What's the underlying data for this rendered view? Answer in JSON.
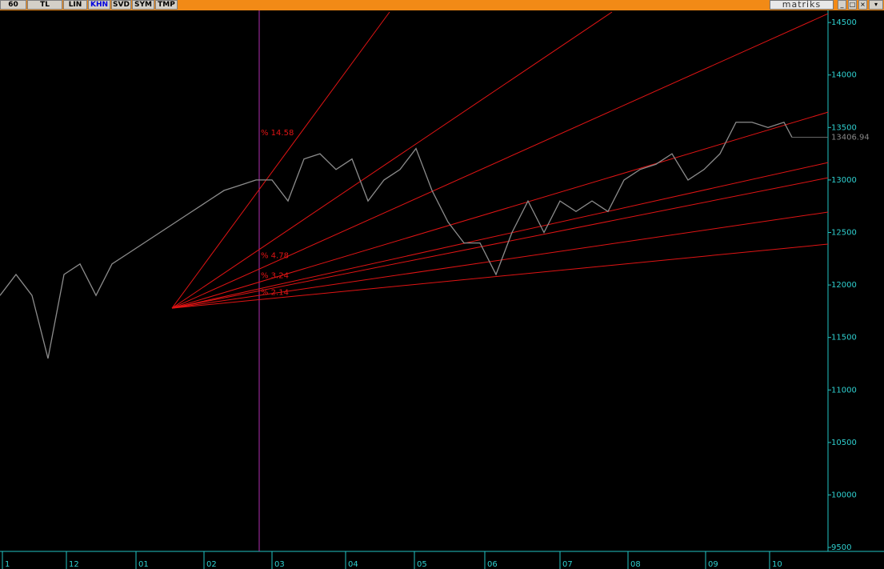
{
  "toolbar": {
    "buttons": [
      "60",
      "TL",
      "LIN",
      "KHN",
      "SVD",
      "SYM",
      "TMP"
    ],
    "active": "KHN",
    "brand": "matriks"
  },
  "chart_data": {
    "type": "line",
    "x": [
      0,
      2,
      4,
      6,
      8,
      10,
      12,
      14,
      16,
      18,
      20,
      22,
      24,
      26,
      28,
      30,
      32,
      34,
      36,
      38,
      40,
      42,
      44,
      46,
      48,
      50,
      52,
      54,
      56,
      58,
      60,
      62,
      64,
      66,
      68,
      70,
      72,
      74,
      76,
      78,
      80,
      82,
      84,
      86,
      88,
      90,
      92,
      94,
      96,
      98,
      99
    ],
    "series": [
      {
        "color": "#8c8c8c",
        "values": [
          11900,
          12100,
          11900,
          11300,
          12100,
          12200,
          11900,
          12200,
          12300,
          12400,
          12500,
          12600,
          12700,
          12800,
          12900,
          12950,
          13000,
          13000,
          12800,
          13200,
          13250,
          13100,
          13200,
          12800,
          13000,
          13100,
          13300,
          12900,
          12600,
          12400,
          12400,
          12100,
          12500,
          12800,
          12500,
          12800,
          12700,
          12800,
          12700,
          13000,
          13100,
          13150,
          13250,
          13000,
          13100,
          13250,
          13550,
          13550,
          13500,
          13550,
          13407
        ]
      }
    ],
    "fan": {
      "color": "#e01414",
      "origin": [
        21.5,
        11779
      ],
      "ends": [
        [
          48.7,
          14600
        ],
        [
          76.5,
          14600
        ],
        [
          103.5,
          14584
        ],
        [
          103.5,
          13646
        ],
        [
          103.5,
          13166
        ],
        [
          103.5,
          13021
        ],
        [
          103.5,
          12694
        ],
        [
          103.5,
          12389
        ]
      ]
    },
    "vline_x": 32.4,
    "vline_color": "#b030b0",
    "annotations": [
      {
        "text": "% 14.58",
        "x": 32.6,
        "y": 13450
      },
      {
        "text": "% 4.78",
        "x": 32.6,
        "y": 12280
      },
      {
        "text": "% 3.24",
        "x": 32.6,
        "y": 12090
      },
      {
        "text": "% 2.14",
        "x": 32.6,
        "y": 11930
      }
    ],
    "last_price_label": "13406.94",
    "xlim": [
      0,
      103.5
    ],
    "ylim": [
      9470,
      14600
    ],
    "yticks": [
      9500,
      10000,
      10500,
      11000,
      11500,
      12000,
      12500,
      13000,
      13500,
      14000,
      14500
    ],
    "xticks": [
      {
        "value": 0.3,
        "label": "1"
      },
      {
        "value": 8.3,
        "label": "12"
      },
      {
        "value": 17,
        "label": "01"
      },
      {
        "value": 25.5,
        "label": "02"
      },
      {
        "value": 34,
        "label": "03"
      },
      {
        "value": 43.2,
        "label": "04"
      },
      {
        "value": 51.8,
        "label": "05"
      },
      {
        "value": 60.6,
        "label": "06"
      },
      {
        "value": 70,
        "label": "07"
      },
      {
        "value": 78.5,
        "label": "08"
      },
      {
        "value": 88.2,
        "label": "09"
      },
      {
        "value": 96.2,
        "label": "10"
      }
    ]
  }
}
